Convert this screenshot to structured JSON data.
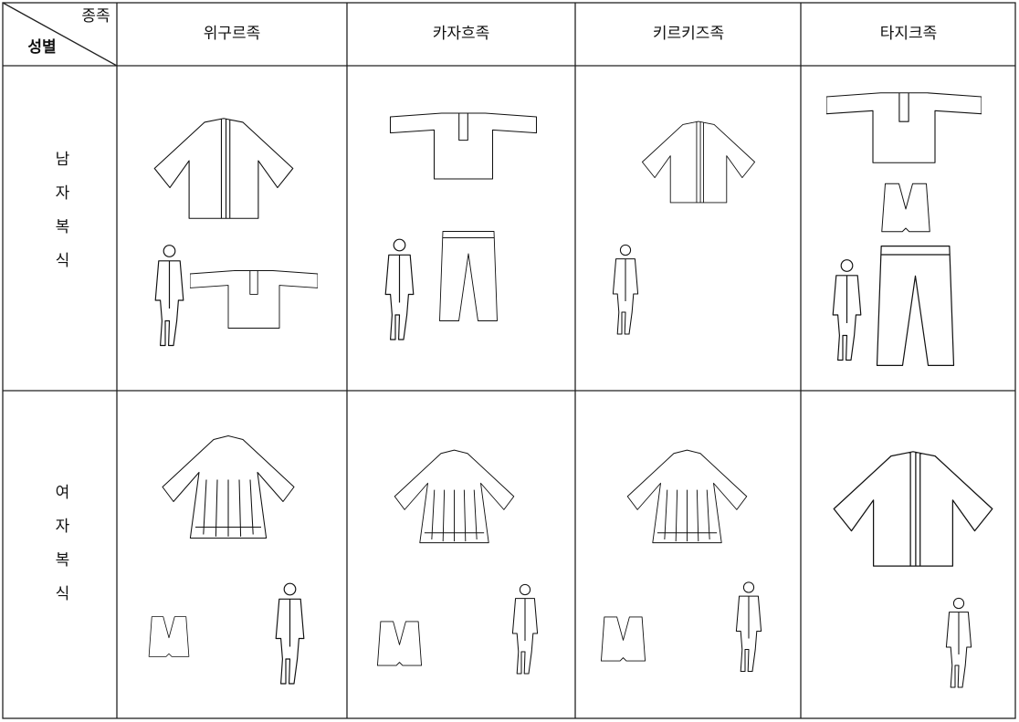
{
  "table": {
    "corner": {
      "top": "종족",
      "bottom": "성별"
    },
    "columns": [
      "위구르족",
      "카자흐족",
      "키르키즈족",
      "타지크족"
    ],
    "rows": [
      {
        "label": "남자복식"
      },
      {
        "label": "여자복식"
      }
    ]
  }
}
